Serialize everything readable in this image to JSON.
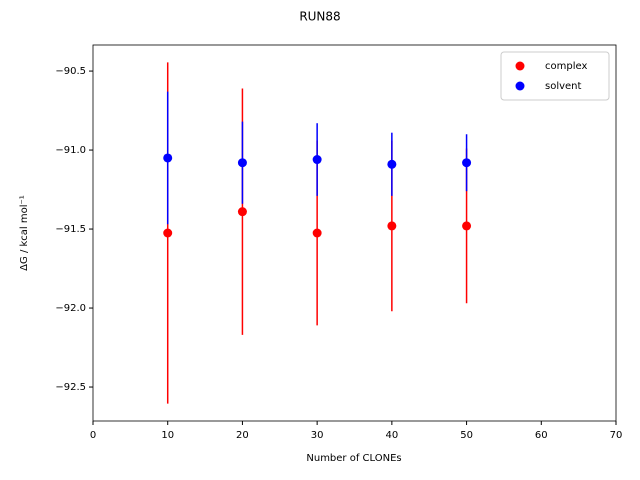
{
  "chart_data": {
    "type": "scatter",
    "title": "RUN88",
    "x_label": "Number of CLONEs",
    "y_label": "ΔG / kcal mol⁻¹",
    "x": [
      10,
      20,
      30,
      40,
      50
    ],
    "series": [
      {
        "name": "complex",
        "color": "#ff0000",
        "values": [
          -91.525,
          -91.39,
          -91.525,
          -91.48,
          -91.48
        ],
        "errors": [
          1.08,
          0.78,
          0.585,
          0.54,
          0.49
        ]
      },
      {
        "name": "solvent",
        "color": "#0000ff",
        "values": [
          -91.05,
          -91.08,
          -91.06,
          -91.09,
          -91.08
        ],
        "errors": [
          0.42,
          0.26,
          0.23,
          0.2,
          0.18
        ]
      }
    ],
    "xlim": [
      0,
      70
    ],
    "xticks": [
      0,
      10,
      20,
      30,
      40,
      50,
      60,
      70
    ],
    "ylim": [
      -92.715,
      -90.335
    ],
    "yticks": [
      {
        "value": -92.5,
        "label": "−92.5"
      },
      {
        "value": -92.0,
        "label": "−92.0"
      },
      {
        "value": -91.5,
        "label": "−91.5"
      },
      {
        "value": -91.0,
        "label": "−91.0"
      },
      {
        "value": -90.5,
        "label": "−90.5"
      }
    ],
    "legend": "upper right"
  }
}
